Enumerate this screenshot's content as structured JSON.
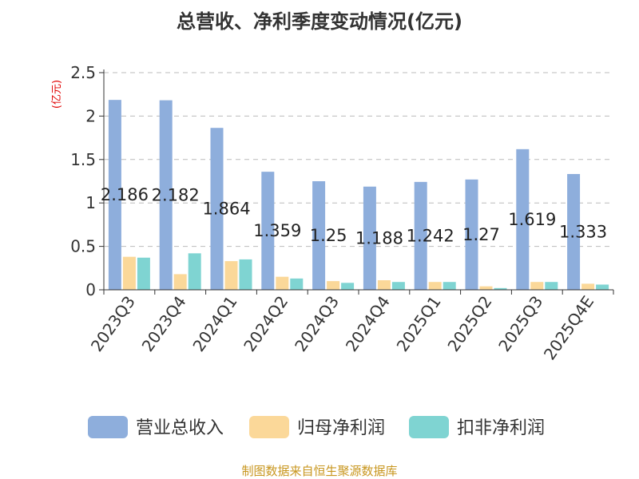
{
  "chart_data": {
    "type": "bar",
    "title": "总营收、净利季度变动情况(亿元)",
    "unit_label": "(亿元)",
    "categories": [
      "2023Q3",
      "2023Q4",
      "2024Q1",
      "2024Q2",
      "2024Q3",
      "2024Q4",
      "2025Q1",
      "2025Q2",
      "2025Q3",
      "2025Q4E"
    ],
    "series": [
      {
        "name": "营业总收入",
        "color": "#8eaedc",
        "values": [
          2.186,
          2.182,
          1.864,
          1.359,
          1.25,
          1.188,
          1.242,
          1.27,
          1.619,
          1.333
        ],
        "labels": [
          "2.186",
          "2.182",
          "1.864",
          "1.359",
          "1.25",
          "1.188",
          "1.242",
          "1.27",
          "1.619",
          "1.333"
        ]
      },
      {
        "name": "归母净利润",
        "color": "#fbd899",
        "values": [
          0.38,
          0.18,
          0.33,
          0.15,
          0.1,
          0.11,
          0.09,
          0.04,
          0.09,
          0.07
        ]
      },
      {
        "name": "扣非净利润",
        "color": "#7fd4d2",
        "values": [
          0.37,
          0.42,
          0.35,
          0.13,
          0.08,
          0.09,
          0.09,
          0.02,
          0.09,
          0.06
        ]
      }
    ],
    "ylim": [
      0,
      2.5
    ],
    "yticks": [
      {
        "value": 0,
        "label": "0"
      },
      {
        "value": 0.5,
        "label": "0.5"
      },
      {
        "value": 1,
        "label": "1"
      },
      {
        "value": 1.5,
        "label": "1.5"
      },
      {
        "value": 2,
        "label": "2"
      },
      {
        "value": 2.5,
        "label": "2.5"
      }
    ],
    "grid": true,
    "legend_position": "bottom"
  },
  "source": "制图数据来自恒生聚源数据库"
}
